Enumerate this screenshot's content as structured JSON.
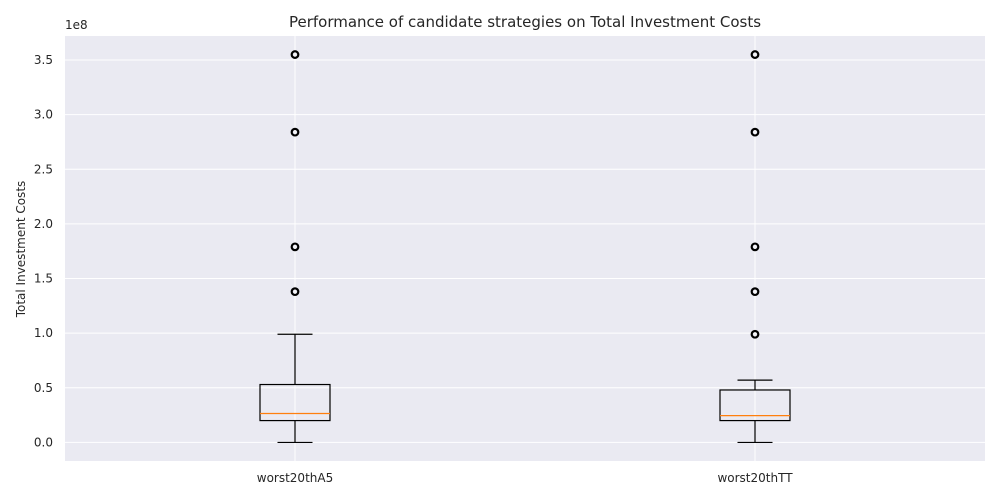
{
  "chart_data": {
    "type": "boxplot",
    "title": "Performance of candidate strategies on Total Investment Costs",
    "xlabel": "",
    "ylabel": "Total Investment Costs",
    "y_offset_label": "1e8",
    "ylim": [
      -0.17,
      3.72
    ],
    "yticks": [
      0.0,
      0.5,
      1.0,
      1.5,
      2.0,
      2.5,
      3.0,
      3.5
    ],
    "ytick_labels": [
      "0.0",
      "0.5",
      "1.0",
      "1.5",
      "2.0",
      "2.5",
      "3.0",
      "3.5"
    ],
    "grid": true,
    "categories": [
      "worst20thA5",
      "worst20thTT"
    ],
    "boxes": [
      {
        "name": "worst20thA5",
        "whisker_low": 0.0,
        "q1": 0.2,
        "median": 0.265,
        "q3": 0.53,
        "whisker_high": 0.99,
        "outliers": [
          1.38,
          1.79,
          2.84,
          3.55
        ]
      },
      {
        "name": "worst20thTT",
        "whisker_low": 0.0,
        "q1": 0.2,
        "median": 0.245,
        "q3": 0.48,
        "whisker_high": 0.57,
        "outliers": [
          0.99,
          1.38,
          1.79,
          2.84,
          3.55
        ]
      }
    ],
    "colors": {
      "plot_background": "#eaeaf2",
      "grid": "#ffffff",
      "box_line": "#000000",
      "median": "#ff7f0e",
      "text": "#262626"
    }
  }
}
